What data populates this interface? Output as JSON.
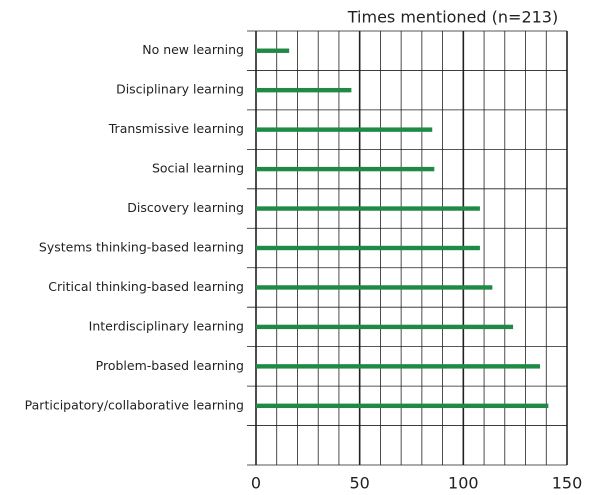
{
  "chart_data": {
    "type": "bar",
    "orientation": "horizontal",
    "title": "Times mentioned (n=213)",
    "categories": [
      "No new learning",
      "Disciplinary learning",
      "Transmissive learning",
      "Social learning",
      "Discovery learning",
      "Systems thinking-based learning",
      "Critical thinking-based learning",
      "Interdisciplinary learning",
      "Problem-based learning",
      "Participatory/collaborative learning"
    ],
    "values": [
      16,
      46,
      85,
      86,
      108,
      108,
      114,
      124,
      137,
      141
    ],
    "color": "#1e8a45",
    "xlim": [
      0,
      150
    ],
    "xticks": [
      0,
      50,
      100,
      150
    ],
    "grid": true
  }
}
